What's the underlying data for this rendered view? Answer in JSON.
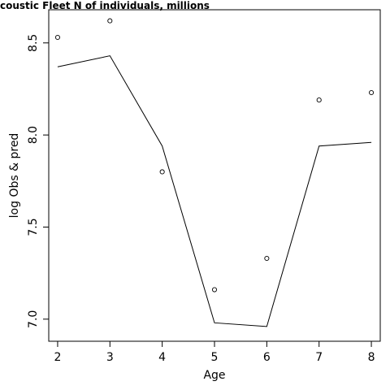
{
  "chart_data": {
    "type": "line",
    "title": "coustic Fleet   N of individuals, millions",
    "xlabel": "Age",
    "ylabel": "log Obs & pred",
    "x": [
      2,
      3,
      4,
      5,
      6,
      7,
      8
    ],
    "xlim": [
      1.83,
      8.17
    ],
    "ylim": [
      6.88,
      8.68
    ],
    "x_ticks": [
      2,
      3,
      4,
      5,
      6,
      7,
      8
    ],
    "y_ticks": [
      7.0,
      7.5,
      8.0,
      8.5
    ],
    "series": [
      {
        "style": "points",
        "values": [
          8.53,
          8.62,
          7.8,
          7.16,
          7.33,
          8.19,
          8.23
        ]
      },
      {
        "style": "line",
        "values": [
          8.37,
          8.43,
          7.94,
          6.98,
          6.96,
          7.94,
          7.96
        ]
      }
    ],
    "grid": false,
    "legend": "none"
  }
}
